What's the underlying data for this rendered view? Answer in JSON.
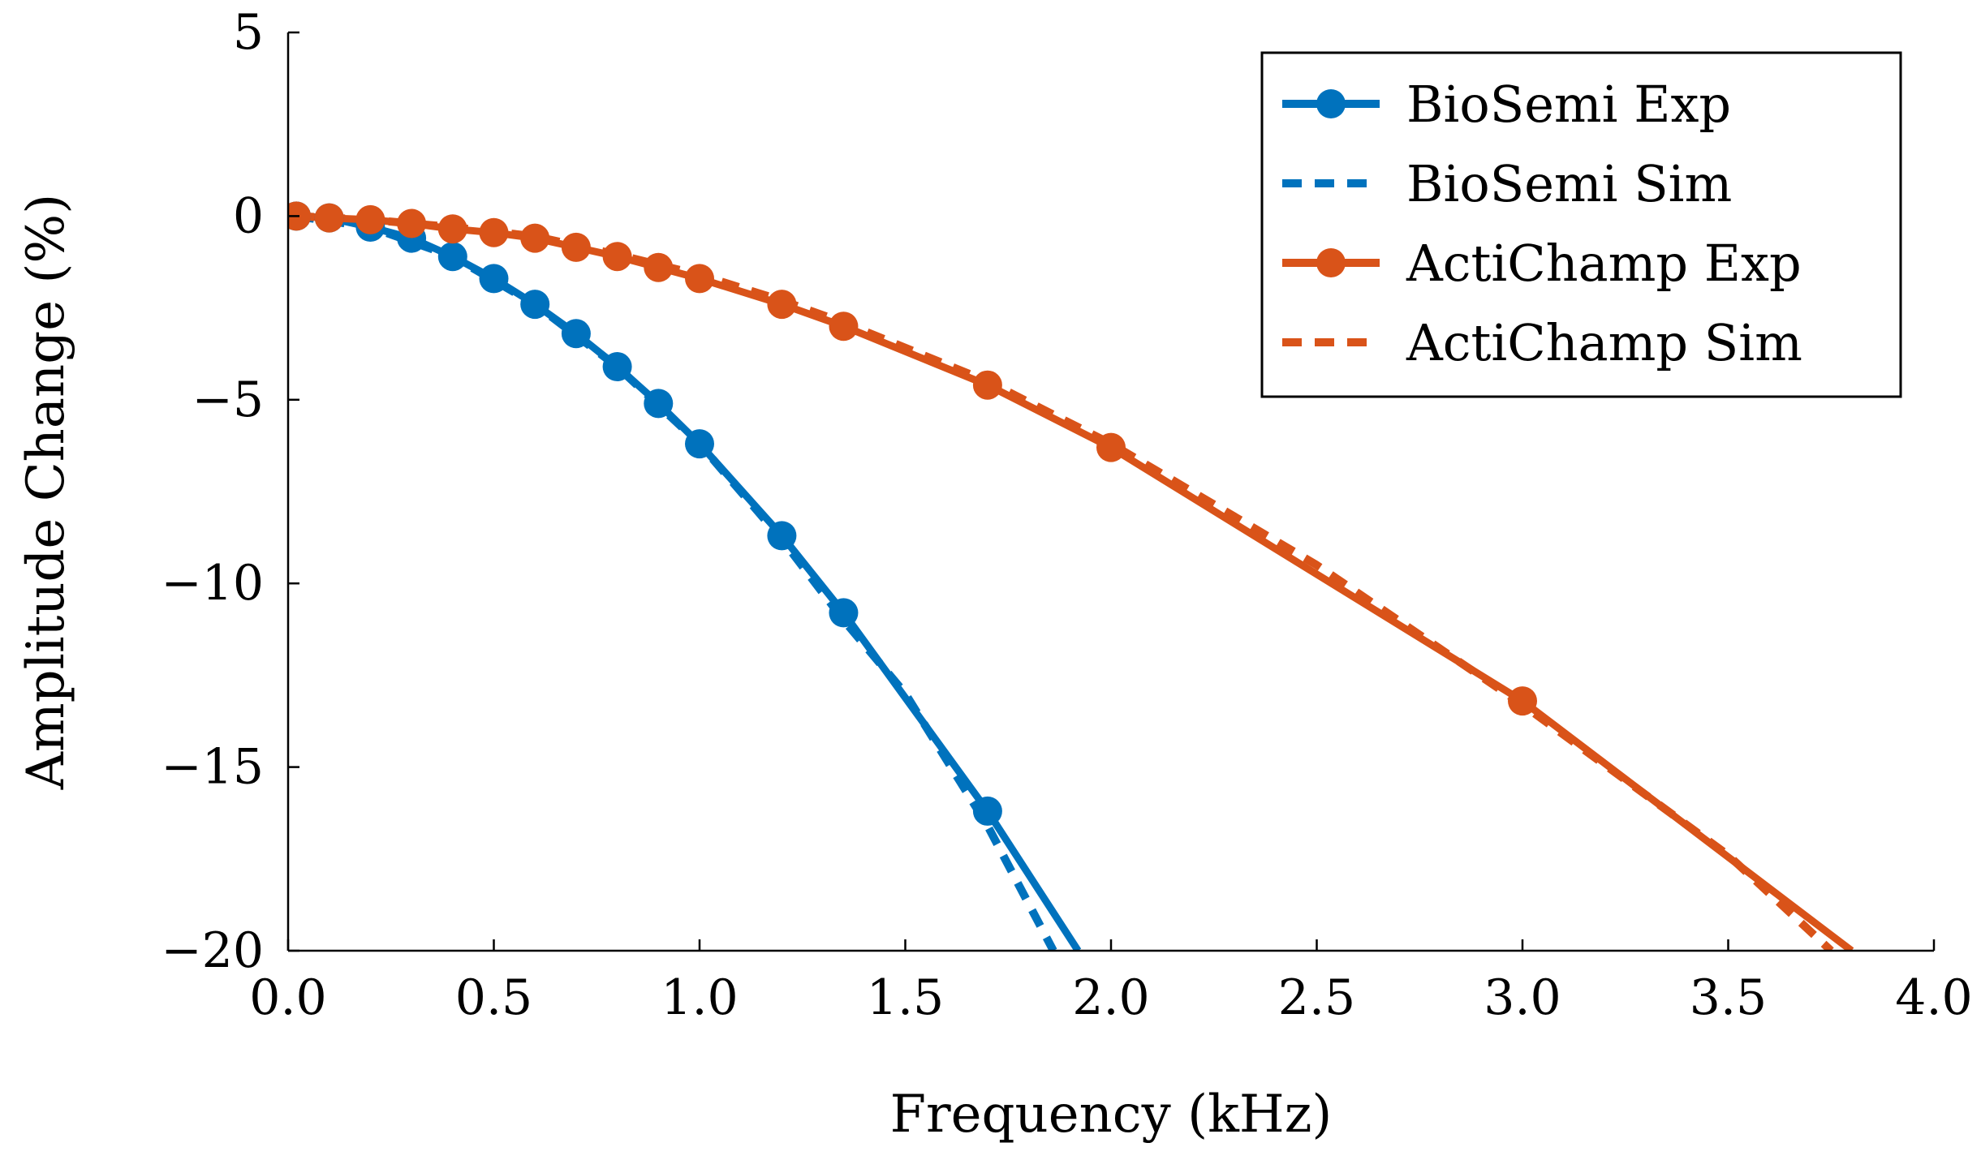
{
  "chart_data": {
    "type": "line",
    "title": "",
    "xlabel": "Frequency (kHz)",
    "ylabel": "Amplitude Change (%)",
    "xlim": [
      0,
      4
    ],
    "ylim": [
      -20,
      5
    ],
    "x_ticks": [
      0,
      0.5,
      1,
      1.5,
      2,
      2.5,
      3,
      3.5,
      4
    ],
    "x_tick_labels": [
      "0.0",
      "0.5",
      "1.0",
      "1.5",
      "2.0",
      "2.5",
      "3.0",
      "3.5",
      "4.0"
    ],
    "y_ticks": [
      5,
      0,
      -5,
      -10,
      -15,
      -20
    ],
    "y_tick_labels": [
      "5",
      "0",
      "−5",
      "−10",
      "−15",
      "−20"
    ],
    "grid": false,
    "legend_position": "top-right",
    "series": [
      {
        "name": "BioSemi Exp",
        "color": "#0072BD",
        "style": "solid",
        "markers": true,
        "x": [
          0.02,
          0.1,
          0.2,
          0.3,
          0.4,
          0.5,
          0.6,
          0.7,
          0.8,
          0.9,
          1.0,
          1.2,
          1.35,
          1.7,
          1.92
        ],
        "y": [
          0,
          -0.05,
          -0.3,
          -0.6,
          -1.1,
          -1.7,
          -2.4,
          -3.2,
          -4.1,
          -5.1,
          -6.2,
          -8.7,
          -10.8,
          -16.2,
          -20
        ],
        "marker_x": [
          0.02,
          0.1,
          0.2,
          0.3,
          0.4,
          0.5,
          0.6,
          0.7,
          0.8,
          0.9,
          1.0,
          1.2,
          1.35,
          1.7
        ]
      },
      {
        "name": "BioSemi Sim",
        "color": "#0072BD",
        "style": "dashed",
        "markers": false,
        "x": [
          0.02,
          0.2,
          0.4,
          0.6,
          0.8,
          1.0,
          1.2,
          1.35,
          1.5,
          1.7,
          1.86
        ],
        "y": [
          0,
          -0.3,
          -1.1,
          -2.4,
          -4.1,
          -6.2,
          -8.8,
          -11.0,
          -13.0,
          -16.6,
          -20
        ]
      },
      {
        "name": "ActiChamp Exp",
        "color": "#D95319",
        "style": "solid",
        "markers": true,
        "x": [
          0.02,
          0.1,
          0.2,
          0.3,
          0.4,
          0.5,
          0.6,
          0.7,
          0.8,
          0.9,
          1.0,
          1.2,
          1.35,
          1.7,
          2.0,
          3.0,
          3.8
        ],
        "y": [
          0,
          -0.05,
          -0.1,
          -0.2,
          -0.35,
          -0.45,
          -0.6,
          -0.85,
          -1.1,
          -1.4,
          -1.7,
          -2.4,
          -3.0,
          -4.6,
          -6.3,
          -13.2,
          -20
        ],
        "marker_x": [
          0.02,
          0.1,
          0.2,
          0.3,
          0.4,
          0.5,
          0.6,
          0.7,
          0.8,
          0.9,
          1.0,
          1.2,
          1.35,
          1.7,
          2.0,
          3.0
        ]
      },
      {
        "name": "ActiChamp Sim",
        "color": "#D95319",
        "style": "dashed",
        "markers": false,
        "x": [
          0.02,
          0.2,
          0.4,
          0.6,
          0.8,
          1.0,
          1.2,
          1.35,
          1.7,
          2.0,
          2.5,
          3.0,
          3.5,
          3.75
        ],
        "y": [
          0,
          -0.1,
          -0.3,
          -0.55,
          -1.05,
          -1.6,
          -2.3,
          -2.9,
          -4.5,
          -6.2,
          -9.5,
          -13.3,
          -17.4,
          -20
        ]
      }
    ]
  }
}
